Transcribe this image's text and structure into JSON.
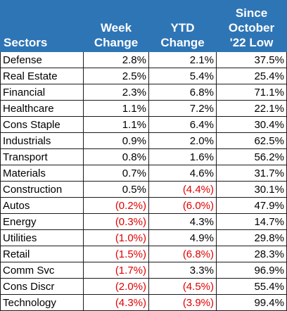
{
  "headers": {
    "sectors": "Sectors",
    "week": [
      "Week",
      "Change"
    ],
    "ytd": [
      "YTD",
      "Change"
    ],
    "since": [
      "Since",
      "October",
      "'22 Low"
    ]
  },
  "colors": {
    "header_bg": "#2e75b6",
    "header_text": "#ffffff",
    "negative_text": "#e00000"
  },
  "rows": [
    {
      "sector": "Defense",
      "week": "2.8%",
      "ytd": "2.1%",
      "since": "37.5%"
    },
    {
      "sector": "Real Estate",
      "week": "2.5%",
      "ytd": "5.4%",
      "since": "25.4%"
    },
    {
      "sector": "Financial",
      "week": "2.3%",
      "ytd": "6.8%",
      "since": "71.1%"
    },
    {
      "sector": "Healthcare",
      "week": "1.1%",
      "ytd": "7.2%",
      "since": "22.1%"
    },
    {
      "sector": "Cons Staple",
      "week": "1.1%",
      "ytd": "6.4%",
      "since": "30.4%"
    },
    {
      "sector": "Industrials",
      "week": "0.9%",
      "ytd": "2.0%",
      "since": "62.5%"
    },
    {
      "sector": "Transport",
      "week": "0.8%",
      "ytd": "1.6%",
      "since": "56.2%"
    },
    {
      "sector": "Materials",
      "week": "0.7%",
      "ytd": "4.6%",
      "since": "31.7%"
    },
    {
      "sector": "Construction",
      "week": "0.5%",
      "ytd": "(4.4%)",
      "since": "30.1%"
    },
    {
      "sector": "Autos",
      "week": "(0.2%)",
      "ytd": "(6.0%)",
      "since": "47.9%"
    },
    {
      "sector": "Energy",
      "week": "(0.3%)",
      "ytd": "4.3%",
      "since": "14.7%"
    },
    {
      "sector": "Utilities",
      "week": "(1.0%)",
      "ytd": "4.9%",
      "since": "29.8%"
    },
    {
      "sector": "Retail",
      "week": "(1.5%)",
      "ytd": "(6.8%)",
      "since": "28.3%"
    },
    {
      "sector": "Comm Svc",
      "week": "(1.7%)",
      "ytd": "3.3%",
      "since": "96.9%"
    },
    {
      "sector": "Cons Discr",
      "week": "(2.0%)",
      "ytd": "(4.5%)",
      "since": "55.4%"
    },
    {
      "sector": "Technology",
      "week": "(4.3%)",
      "ytd": "(3.9%)",
      "since": "99.4%"
    }
  ]
}
